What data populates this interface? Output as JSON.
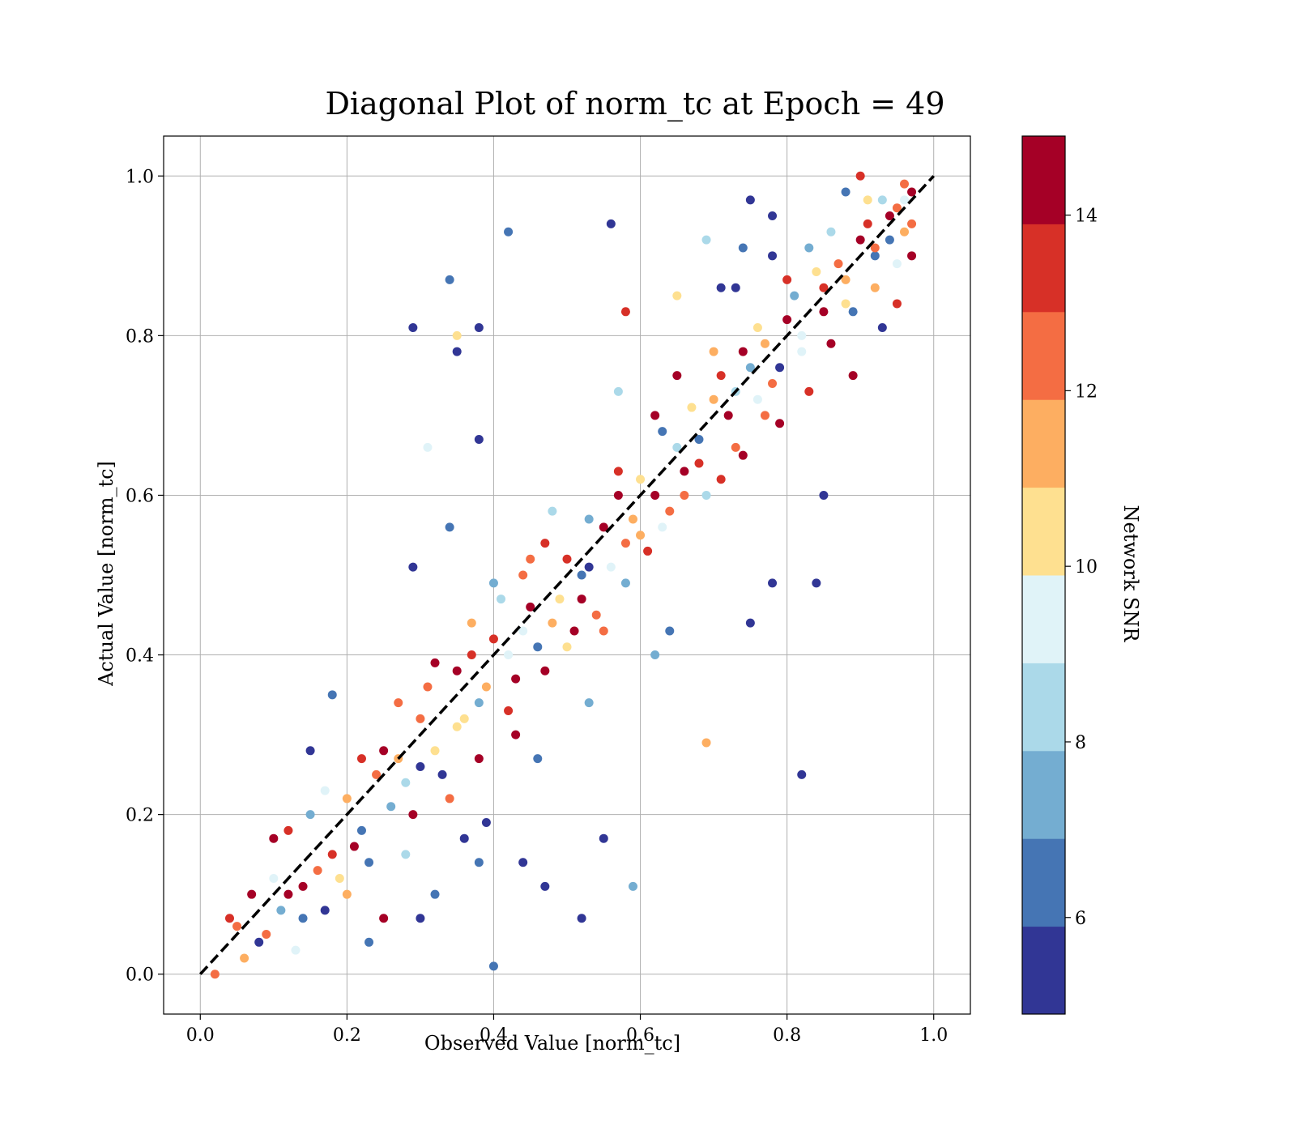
{
  "chart_data": {
    "type": "scatter",
    "title": "Diagonal Plot of norm_tc at Epoch = 49",
    "xlabel": "Observed Value [norm_tc]",
    "ylabel": "Actual Value [norm_tc]",
    "xlim": [
      -0.05,
      1.05
    ],
    "ylim": [
      -0.05,
      1.05
    ],
    "xticks": [
      "0.0",
      "0.2",
      "0.4",
      "0.6",
      "0.8",
      "1.0"
    ],
    "yticks": [
      "0.0",
      "0.2",
      "0.4",
      "0.6",
      "0.8",
      "1.0"
    ],
    "grid": true,
    "reference_line": {
      "x": [
        0,
        1
      ],
      "y": [
        0,
        1
      ],
      "style": "dashed",
      "color": "#000000"
    },
    "colorbar": {
      "label": "Network SNR",
      "range": [
        4.9,
        14.9
      ],
      "ticks": [
        "6",
        "8",
        "10",
        "12",
        "14"
      ],
      "tick_values": [
        6,
        8,
        10,
        12,
        14
      ],
      "colors": [
        "#313695",
        "#4575b4",
        "#74add1",
        "#abd9e9",
        "#e0f3f8",
        "#fee090",
        "#fdae61",
        "#f46d43",
        "#d73027",
        "#a50026"
      ]
    },
    "points": [
      [
        0.08,
        0.04,
        5
      ],
      [
        0.12,
        0.1,
        14
      ],
      [
        0.05,
        0.06,
        12
      ],
      [
        0.1,
        0.12,
        9
      ],
      [
        0.15,
        0.2,
        7
      ],
      [
        0.18,
        0.15,
        13
      ],
      [
        0.2,
        0.22,
        11
      ],
      [
        0.22,
        0.18,
        6
      ],
      [
        0.25,
        0.28,
        14
      ],
      [
        0.28,
        0.24,
        8
      ],
      [
        0.3,
        0.32,
        12
      ],
      [
        0.32,
        0.28,
        10
      ],
      [
        0.35,
        0.38,
        14
      ],
      [
        0.38,
        0.34,
        7
      ],
      [
        0.4,
        0.42,
        13
      ],
      [
        0.42,
        0.4,
        9
      ],
      [
        0.45,
        0.46,
        14
      ],
      [
        0.48,
        0.44,
        11
      ],
      [
        0.5,
        0.52,
        13
      ],
      [
        0.52,
        0.5,
        6
      ],
      [
        0.55,
        0.56,
        14
      ],
      [
        0.58,
        0.54,
        12
      ],
      [
        0.6,
        0.62,
        10
      ],
      [
        0.62,
        0.6,
        14
      ],
      [
        0.65,
        0.66,
        8
      ],
      [
        0.68,
        0.64,
        13
      ],
      [
        0.7,
        0.72,
        11
      ],
      [
        0.72,
        0.7,
        14
      ],
      [
        0.75,
        0.76,
        7
      ],
      [
        0.78,
        0.74,
        12
      ],
      [
        0.8,
        0.82,
        14
      ],
      [
        0.82,
        0.8,
        9
      ],
      [
        0.85,
        0.86,
        13
      ],
      [
        0.88,
        0.84,
        10
      ],
      [
        0.9,
        0.92,
        14
      ],
      [
        0.92,
        0.9,
        6
      ],
      [
        0.95,
        0.96,
        12
      ],
      [
        0.97,
        0.98,
        14
      ],
      [
        0.96,
        0.93,
        11
      ],
      [
        0.93,
        0.97,
        8
      ],
      [
        0.29,
        0.81,
        5
      ],
      [
        0.34,
        0.87,
        6
      ],
      [
        0.42,
        0.93,
        6
      ],
      [
        0.56,
        0.94,
        5
      ],
      [
        0.38,
        0.81,
        5
      ],
      [
        0.35,
        0.78,
        5
      ],
      [
        0.38,
        0.67,
        5
      ],
      [
        0.31,
        0.66,
        9
      ],
      [
        0.35,
        0.8,
        10
      ],
      [
        0.34,
        0.56,
        6
      ],
      [
        0.29,
        0.51,
        5
      ],
      [
        0.18,
        0.35,
        6
      ],
      [
        0.15,
        0.28,
        5
      ],
      [
        0.4,
        0.01,
        6
      ],
      [
        0.3,
        0.07,
        5
      ],
      [
        0.32,
        0.1,
        6
      ],
      [
        0.44,
        0.14,
        5
      ],
      [
        0.47,
        0.11,
        5
      ],
      [
        0.52,
        0.07,
        5
      ],
      [
        0.55,
        0.17,
        5
      ],
      [
        0.59,
        0.11,
        7
      ],
      [
        0.62,
        0.4,
        7
      ],
      [
        0.64,
        0.43,
        6
      ],
      [
        0.69,
        0.29,
        11
      ],
      [
        0.75,
        0.44,
        5
      ],
      [
        0.78,
        0.49,
        5
      ],
      [
        0.82,
        0.25,
        5
      ],
      [
        0.84,
        0.49,
        5
      ],
      [
        0.85,
        0.6,
        5
      ],
      [
        0.75,
        0.97,
        5
      ],
      [
        0.78,
        0.95,
        5
      ],
      [
        0.69,
        0.92,
        8
      ],
      [
        0.74,
        0.91,
        6
      ],
      [
        0.78,
        0.9,
        5
      ],
      [
        0.71,
        0.86,
        5
      ],
      [
        0.73,
        0.86,
        5
      ],
      [
        0.58,
        0.83,
        13
      ],
      [
        0.65,
        0.85,
        10
      ],
      [
        0.57,
        0.73,
        8
      ],
      [
        0.46,
        0.27,
        6
      ],
      [
        0.43,
        0.3,
        14
      ],
      [
        0.53,
        0.34,
        7
      ],
      [
        0.39,
        0.19,
        5
      ],
      [
        0.36,
        0.17,
        5
      ],
      [
        0.38,
        0.14,
        6
      ],
      [
        0.04,
        0.07,
        13
      ],
      [
        0.06,
        0.02,
        11
      ],
      [
        0.07,
        0.1,
        14
      ],
      [
        0.09,
        0.05,
        12
      ],
      [
        0.11,
        0.08,
        7
      ],
      [
        0.13,
        0.03,
        9
      ],
      [
        0.14,
        0.11,
        14
      ],
      [
        0.16,
        0.13,
        12
      ],
      [
        0.17,
        0.08,
        5
      ],
      [
        0.19,
        0.12,
        10
      ],
      [
        0.21,
        0.16,
        14
      ],
      [
        0.23,
        0.14,
        6
      ],
      [
        0.24,
        0.25,
        12
      ],
      [
        0.26,
        0.21,
        7
      ],
      [
        0.27,
        0.27,
        11
      ],
      [
        0.29,
        0.2,
        14
      ],
      [
        0.31,
        0.36,
        12
      ],
      [
        0.33,
        0.25,
        5
      ],
      [
        0.36,
        0.32,
        10
      ],
      [
        0.37,
        0.4,
        13
      ],
      [
        0.39,
        0.36,
        11
      ],
      [
        0.41,
        0.47,
        8
      ],
      [
        0.43,
        0.37,
        14
      ],
      [
        0.44,
        0.5,
        12
      ],
      [
        0.46,
        0.41,
        6
      ],
      [
        0.47,
        0.54,
        13
      ],
      [
        0.49,
        0.47,
        10
      ],
      [
        0.51,
        0.43,
        14
      ],
      [
        0.53,
        0.57,
        7
      ],
      [
        0.54,
        0.45,
        12
      ],
      [
        0.56,
        0.51,
        9
      ],
      [
        0.57,
        0.6,
        14
      ],
      [
        0.59,
        0.57,
        11
      ],
      [
        0.61,
        0.53,
        13
      ],
      [
        0.63,
        0.68,
        6
      ],
      [
        0.64,
        0.58,
        12
      ],
      [
        0.66,
        0.63,
        14
      ],
      [
        0.67,
        0.71,
        10
      ],
      [
        0.69,
        0.6,
        8
      ],
      [
        0.71,
        0.75,
        13
      ],
      [
        0.73,
        0.66,
        12
      ],
      [
        0.74,
        0.78,
        14
      ],
      [
        0.76,
        0.72,
        9
      ],
      [
        0.77,
        0.79,
        11
      ],
      [
        0.79,
        0.69,
        14
      ],
      [
        0.81,
        0.85,
        7
      ],
      [
        0.83,
        0.73,
        13
      ],
      [
        0.84,
        0.88,
        10
      ],
      [
        0.86,
        0.79,
        14
      ],
      [
        0.87,
        0.89,
        12
      ],
      [
        0.89,
        0.83,
        6
      ],
      [
        0.91,
        0.94,
        13
      ],
      [
        0.92,
        0.86,
        11
      ],
      [
        0.94,
        0.95,
        14
      ],
      [
        0.95,
        0.89,
        9
      ],
      [
        0.96,
        0.99,
        12
      ],
      [
        0.97,
        0.9,
        14
      ],
      [
        0.9,
        1.0,
        13
      ],
      [
        0.93,
        0.81,
        5
      ],
      [
        0.88,
        0.98,
        6
      ],
      [
        0.02,
        0.0,
        12
      ],
      [
        0.1,
        0.17,
        14
      ],
      [
        0.12,
        0.18,
        13
      ],
      [
        0.14,
        0.07,
        6
      ],
      [
        0.17,
        0.23,
        9
      ],
      [
        0.2,
        0.1,
        11
      ],
      [
        0.22,
        0.27,
        13
      ],
      [
        0.23,
        0.04,
        6
      ],
      [
        0.25,
        0.07,
        14
      ],
      [
        0.27,
        0.34,
        12
      ],
      [
        0.28,
        0.15,
        8
      ],
      [
        0.3,
        0.26,
        5
      ],
      [
        0.32,
        0.39,
        14
      ],
      [
        0.34,
        0.22,
        12
      ],
      [
        0.35,
        0.31,
        10
      ],
      [
        0.37,
        0.44,
        11
      ],
      [
        0.38,
        0.27,
        14
      ],
      [
        0.4,
        0.49,
        7
      ],
      [
        0.42,
        0.33,
        13
      ],
      [
        0.44,
        0.43,
        9
      ],
      [
        0.45,
        0.52,
        12
      ],
      [
        0.47,
        0.38,
        14
      ],
      [
        0.48,
        0.58,
        8
      ],
      [
        0.5,
        0.41,
        10
      ],
      [
        0.52,
        0.47,
        14
      ],
      [
        0.53,
        0.51,
        5
      ],
      [
        0.55,
        0.43,
        12
      ],
      [
        0.57,
        0.63,
        13
      ],
      [
        0.58,
        0.49,
        7
      ],
      [
        0.6,
        0.55,
        11
      ],
      [
        0.62,
        0.7,
        14
      ],
      [
        0.63,
        0.56,
        9
      ],
      [
        0.65,
        0.75,
        14
      ],
      [
        0.66,
        0.6,
        12
      ],
      [
        0.68,
        0.67,
        6
      ],
      [
        0.7,
        0.78,
        11
      ],
      [
        0.71,
        0.62,
        13
      ],
      [
        0.73,
        0.73,
        8
      ],
      [
        0.74,
        0.65,
        14
      ],
      [
        0.76,
        0.81,
        10
      ],
      [
        0.77,
        0.7,
        12
      ],
      [
        0.79,
        0.76,
        5
      ],
      [
        0.8,
        0.87,
        13
      ],
      [
        0.82,
        0.78,
        9
      ],
      [
        0.83,
        0.91,
        7
      ],
      [
        0.85,
        0.83,
        14
      ],
      [
        0.86,
        0.93,
        8
      ],
      [
        0.88,
        0.87,
        11
      ],
      [
        0.89,
        0.75,
        14
      ],
      [
        0.91,
        0.97,
        10
      ],
      [
        0.92,
        0.91,
        12
      ],
      [
        0.94,
        0.92,
        6
      ],
      [
        0.95,
        0.84,
        13
      ],
      [
        0.96,
        0.97,
        9
      ],
      [
        0.97,
        0.94,
        12
      ]
    ]
  }
}
